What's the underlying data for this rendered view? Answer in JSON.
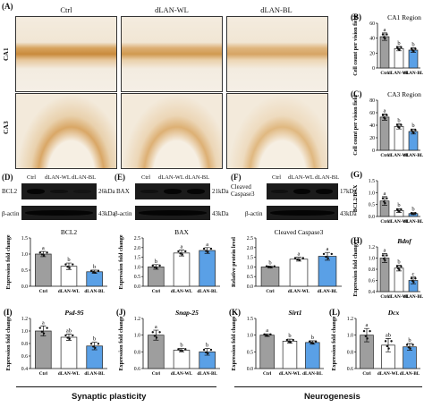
{
  "panel_a": {
    "label": "(A)",
    "columns": [
      "Ctrl",
      "dLAN-WL",
      "dLAN-BL"
    ],
    "rows": [
      "CA1",
      "CA3"
    ]
  },
  "chart_data": [
    {
      "id": "B",
      "type": "bar",
      "label": "(B)",
      "title": "CA1 Region",
      "ylabel": "Cell count per vision field",
      "categories": [
        "Ctrl",
        "dLAN-WL",
        "dLAN-BL"
      ],
      "values": [
        42,
        26,
        24
      ],
      "errors": [
        5,
        3,
        3
      ],
      "ylim": [
        0,
        60
      ],
      "yticks": [
        0,
        20,
        40,
        60
      ],
      "letters": [
        "a",
        "b",
        "b"
      ]
    },
    {
      "id": "C",
      "type": "bar",
      "label": "(C)",
      "title": "CA3 Region",
      "ylabel": "Cell count per vision field",
      "categories": [
        "Ctrl",
        "dLAN-WL",
        "dLAN-BL"
      ],
      "values": [
        53,
        38,
        30
      ],
      "errors": [
        5,
        4,
        4
      ],
      "ylim": [
        0,
        80
      ],
      "yticks": [
        0,
        20,
        40,
        60,
        80
      ],
      "letters": [
        "a",
        "b",
        "b"
      ]
    },
    {
      "id": "G",
      "type": "bar",
      "label": "(G)",
      "title": "",
      "ylabel": "BCL2/BAX",
      "categories": [
        "Ctrl",
        "dLAN-WL",
        "dLAN-BL"
      ],
      "values": [
        0.65,
        0.25,
        0.12
      ],
      "errors": [
        0.18,
        0.08,
        0.04
      ],
      "ylim": [
        0,
        1.5
      ],
      "yticks": [
        0.0,
        0.5,
        1.0,
        1.5
      ],
      "letters": [
        "a",
        "b",
        "b"
      ]
    },
    {
      "id": "D",
      "type": "bar",
      "label": "",
      "title": "BCL2",
      "ylabel": "Expression fold change",
      "categories": [
        "Ctrl",
        "dLAN-WL",
        "dLAN-BL"
      ],
      "values": [
        1.0,
        0.62,
        0.45
      ],
      "errors": [
        0.08,
        0.1,
        0.05
      ],
      "ylim": [
        0,
        1.5
      ],
      "yticks": [
        0.0,
        0.5,
        1.0,
        1.5
      ],
      "letters": [
        "a",
        "b",
        "b"
      ]
    },
    {
      "id": "E",
      "type": "bar",
      "label": "",
      "title": "BAX",
      "ylabel": "Expression fold change",
      "categories": [
        "Ctrl",
        "dLAN-WL",
        "dLAN-BL"
      ],
      "values": [
        1.0,
        1.72,
        1.85
      ],
      "errors": [
        0.12,
        0.15,
        0.15
      ],
      "ylim": [
        0,
        2.5
      ],
      "yticks": [
        0.0,
        0.5,
        1.0,
        1.5,
        2.0,
        2.5
      ],
      "letters": [
        "b",
        "a",
        "a"
      ]
    },
    {
      "id": "F",
      "type": "bar",
      "label": "",
      "title": "Cleaved Caspase3",
      "ylabel": "Relative protein level",
      "categories": [
        "Ctrl",
        "dLAN-WL",
        "dLAN-BL"
      ],
      "values": [
        1.0,
        1.4,
        1.55
      ],
      "errors": [
        0.05,
        0.1,
        0.2
      ],
      "ylim": [
        0,
        2.5
      ],
      "yticks": [
        0.0,
        0.5,
        1.0,
        1.5,
        2.0,
        2.5
      ],
      "letters": [
        "b",
        "a",
        "a"
      ]
    },
    {
      "id": "H",
      "type": "bar",
      "label": "(H)",
      "title": "Bdnf",
      "ylabel": "Expression fold change",
      "categories": [
        "Ctrl",
        "dLAN-WL",
        "dLAN-BL"
      ],
      "values": [
        1.0,
        0.82,
        0.6
      ],
      "errors": [
        0.08,
        0.05,
        0.06
      ],
      "ylim": [
        0.4,
        1.2
      ],
      "yticks": [
        0.4,
        0.6,
        0.8,
        1.0,
        1.2
      ],
      "letters": [
        "a",
        "b",
        "c"
      ]
    },
    {
      "id": "I",
      "type": "bar",
      "label": "(I)",
      "title": "Psd-95",
      "ylabel": "Expression fold change",
      "categories": [
        "Ctrl",
        "dLAN-WL",
        "dLAN-BL"
      ],
      "values": [
        1.0,
        0.9,
        0.76
      ],
      "errors": [
        0.08,
        0.05,
        0.06
      ],
      "ylim": [
        0.4,
        1.2
      ],
      "yticks": [
        0.4,
        0.6,
        0.8,
        1.0,
        1.2
      ],
      "letters": [
        "a",
        "ab",
        "b"
      ]
    },
    {
      "id": "J",
      "type": "bar",
      "label": "(J)",
      "title": "Snap-25",
      "ylabel": "Expression fold change",
      "categories": [
        "Ctrl",
        "dLAN-WL",
        "dLAN-BL"
      ],
      "values": [
        1.0,
        0.82,
        0.8
      ],
      "errors": [
        0.06,
        0.02,
        0.04
      ],
      "ylim": [
        0.6,
        1.2
      ],
      "yticks": [
        0.6,
        0.8,
        1.0,
        1.2
      ],
      "letters": [
        "a",
        "b",
        "b"
      ]
    },
    {
      "id": "K",
      "type": "bar",
      "label": "(K)",
      "title": "Sirt1",
      "ylabel": "Expression fold change",
      "categories": [
        "Ctrl",
        "dLAN-WL",
        "dLAN-BL"
      ],
      "values": [
        1.0,
        0.82,
        0.78
      ],
      "errors": [
        0.04,
        0.06,
        0.05
      ],
      "ylim": [
        0,
        1.5
      ],
      "yticks": [
        0.0,
        0.5,
        1.0,
        1.5
      ],
      "letters": [
        "a",
        "b",
        "b"
      ]
    },
    {
      "id": "L",
      "type": "bar",
      "label": "(L)",
      "title": "Dcx",
      "ylabel": "Expression fold change",
      "categories": [
        "Ctrl",
        "dLAN-WL",
        "dLAN-BL"
      ],
      "values": [
        1.0,
        0.88,
        0.86
      ],
      "errors": [
        0.08,
        0.08,
        0.04
      ],
      "ylim": [
        0.6,
        1.2
      ],
      "yticks": [
        0.6,
        0.8,
        1.0,
        1.2
      ],
      "letters": [
        "a",
        "ab",
        "b"
      ]
    }
  ],
  "colors": {
    "ctrl": "#9e9e9e",
    "wl": "#ffffff",
    "bl": "#5aa0e6"
  },
  "blots": {
    "D": {
      "label": "(D)",
      "lanes": [
        "Ctrl",
        "dLAN-WL",
        "dLAN-BL"
      ],
      "rows": [
        {
          "left": "BCL2",
          "right": "26kDa"
        },
        {
          "left": "β-actin",
          "right": "43kDa"
        }
      ]
    },
    "E": {
      "label": "(E)",
      "lanes": [
        "Ctrl",
        "dLAN-WL",
        "dLAN-BL"
      ],
      "rows": [
        {
          "left": "BAX",
          "right": "21kDa"
        },
        {
          "left": "β-actin",
          "right": "43kDa"
        }
      ]
    },
    "F": {
      "label": "(F)",
      "lanes": [
        "Ctrl",
        "dLAN-WL",
        "dLAN-BL"
      ],
      "rows": [
        {
          "left": "Cleaved Caspase3",
          "right": "17kDa"
        },
        {
          "left": "β-actin",
          "right": "43kDa"
        }
      ]
    }
  },
  "footer": {
    "left": "Synaptic plasticity",
    "right": "Neurogenesis"
  }
}
